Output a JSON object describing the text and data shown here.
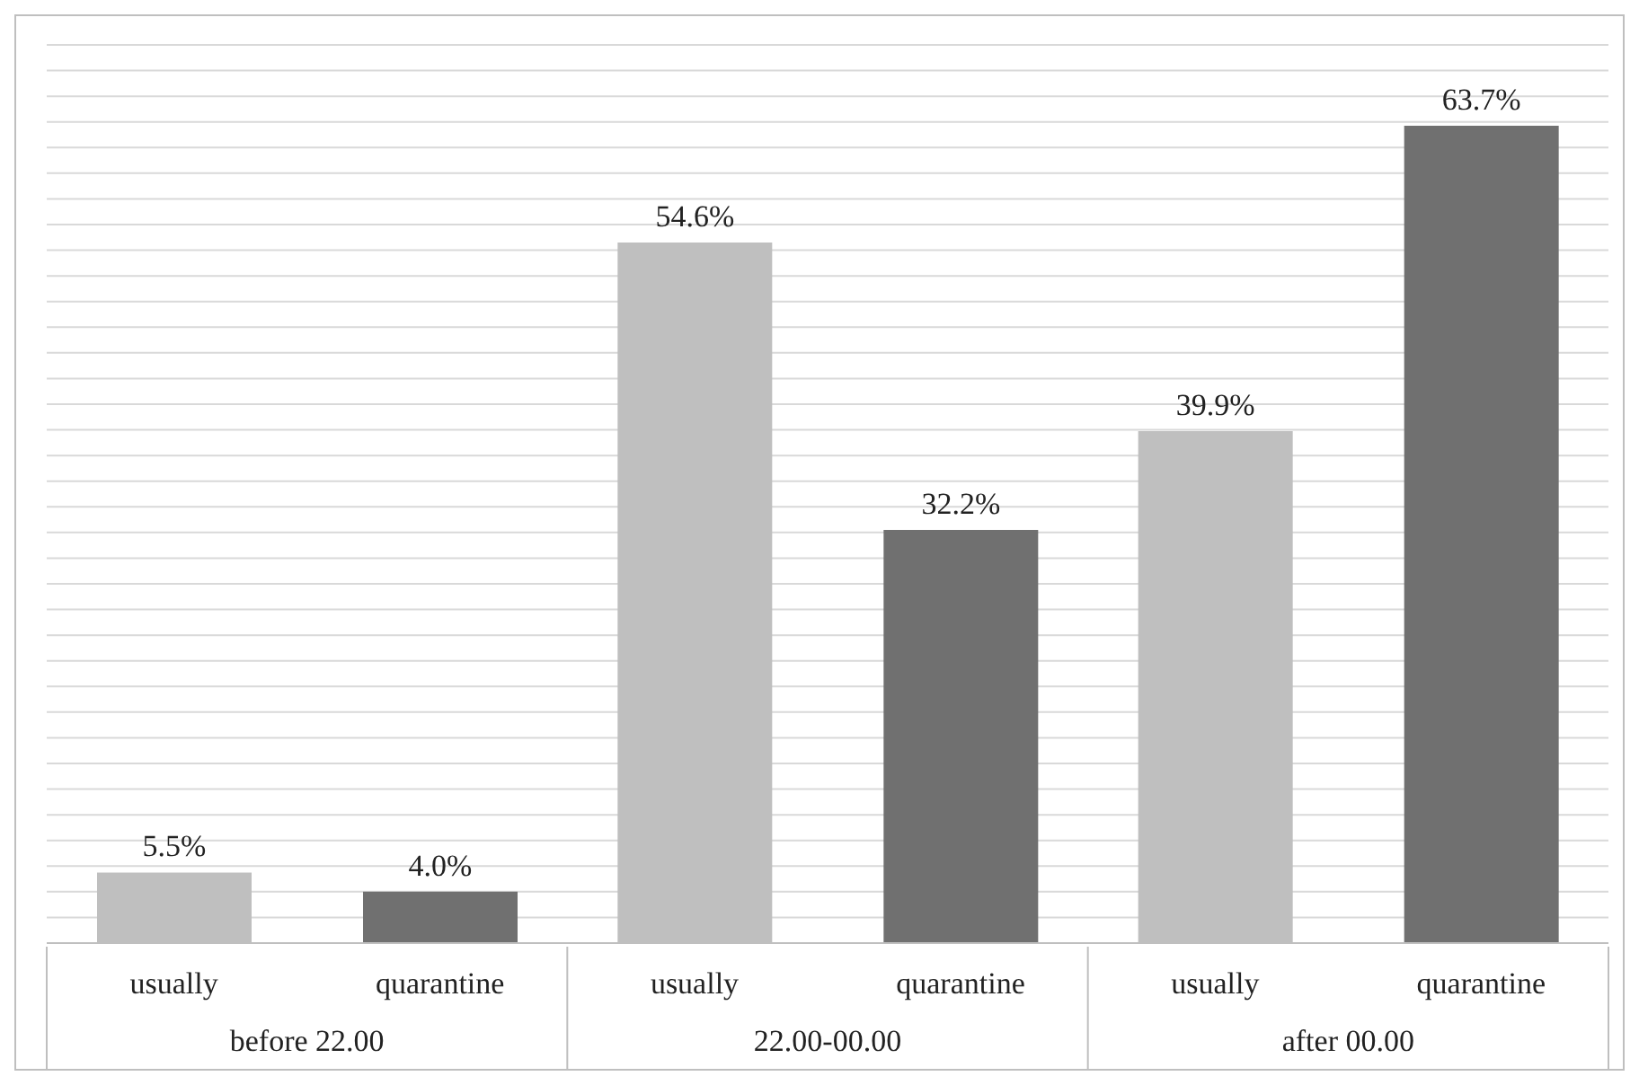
{
  "chart_data": {
    "type": "bar",
    "categories": [
      "before 22.00",
      "22.00-00.00",
      "after 00.00"
    ],
    "series": [
      {
        "name": "usually",
        "color": "#bfbfbf",
        "values": [
          5.5,
          54.6,
          39.9
        ],
        "value_labels": [
          "5.5%",
          "54.6%",
          "39.9%"
        ]
      },
      {
        "name": "quarantine",
        "color": "#707070",
        "values": [
          4.0,
          32.2,
          63.7
        ],
        "value_labels": [
          "4.0%",
          "32.2%",
          "63.7%"
        ]
      }
    ],
    "grid": "y",
    "tick_labels": "x",
    "legend": false
  }
}
